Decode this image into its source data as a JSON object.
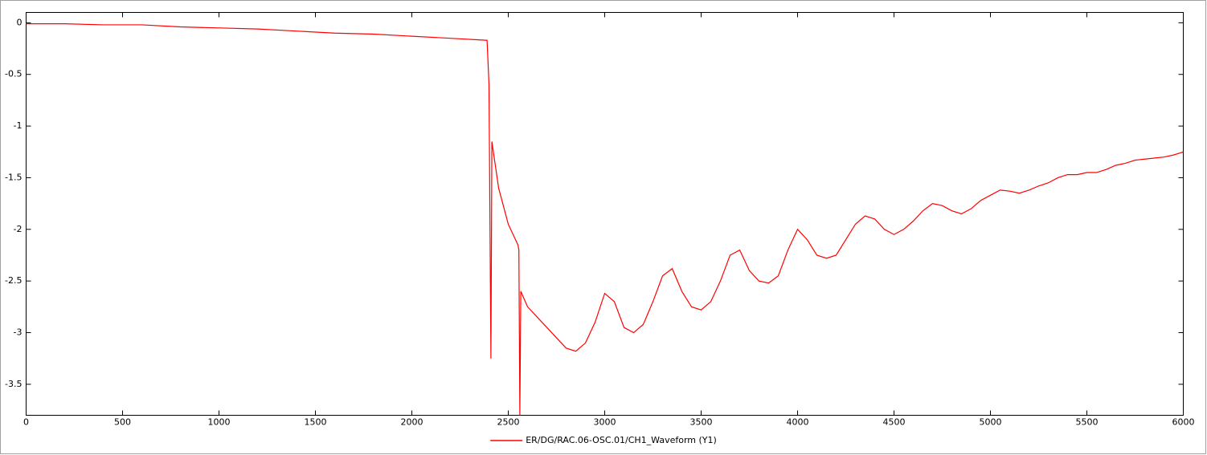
{
  "chart_data": {
    "type": "line",
    "x": [
      0,
      200,
      400,
      600,
      800,
      1000,
      1200,
      1400,
      1600,
      1800,
      2000,
      2200,
      2390,
      2400,
      2410,
      2415,
      2450,
      2500,
      2550,
      2555,
      2560,
      2565,
      2600,
      2650,
      2700,
      2750,
      2800,
      2850,
      2900,
      2950,
      3000,
      3050,
      3100,
      3150,
      3200,
      3250,
      3300,
      3350,
      3400,
      3450,
      3500,
      3550,
      3600,
      3650,
      3700,
      3750,
      3800,
      3850,
      3900,
      3950,
      4000,
      4050,
      4100,
      4150,
      4200,
      4250,
      4300,
      4350,
      4400,
      4450,
      4500,
      4550,
      4600,
      4650,
      4700,
      4750,
      4800,
      4850,
      4900,
      4950,
      5000,
      5050,
      5100,
      5150,
      5200,
      5250,
      5300,
      5350,
      5400,
      5450,
      5500,
      5550,
      5600,
      5650,
      5700,
      5750,
      5800,
      5850,
      5900,
      5950,
      6000
    ],
    "series": [
      {
        "name": "ER/DG/RAC.06-OSC.01/CH1_Waveform (Y1)",
        "color": "#ff0000",
        "values": [
          -0.01,
          -0.01,
          -0.02,
          -0.02,
          -0.04,
          -0.05,
          -0.06,
          -0.08,
          -0.1,
          -0.11,
          -0.13,
          -0.15,
          -0.17,
          -0.6,
          -3.25,
          -1.15,
          -1.6,
          -1.95,
          -2.15,
          -2.2,
          -3.8,
          -2.6,
          -2.75,
          -2.85,
          -2.95,
          -3.05,
          -3.15,
          -3.18,
          -3.1,
          -2.9,
          -2.62,
          -2.7,
          -2.95,
          -3.0,
          -2.92,
          -2.7,
          -2.45,
          -2.38,
          -2.6,
          -2.75,
          -2.78,
          -2.7,
          -2.5,
          -2.25,
          -2.2,
          -2.4,
          -2.5,
          -2.52,
          -2.45,
          -2.2,
          -2.0,
          -2.1,
          -2.25,
          -2.28,
          -2.25,
          -2.1,
          -1.95,
          -1.87,
          -1.9,
          -2.0,
          -2.05,
          -2.0,
          -1.92,
          -1.82,
          -1.75,
          -1.77,
          -1.82,
          -1.85,
          -1.8,
          -1.72,
          -1.67,
          -1.62,
          -1.63,
          -1.65,
          -1.62,
          -1.58,
          -1.55,
          -1.5,
          -1.47,
          -1.47,
          -1.45,
          -1.45,
          -1.42,
          -1.38,
          -1.36,
          -1.33,
          -1.32,
          -1.31,
          -1.3,
          -1.28,
          -1.25
        ]
      }
    ],
    "xlim": [
      0,
      6000
    ],
    "xticks": [
      0,
      500,
      1000,
      1500,
      2000,
      2500,
      3000,
      3500,
      4000,
      4500,
      5000,
      5500,
      6000
    ],
    "ylim": [
      -3.8,
      0.1
    ],
    "yticks": [
      0,
      -0.5,
      -1,
      -1.5,
      -2,
      -2.5,
      -3,
      -3.5
    ],
    "grid": false,
    "legend": "bottom"
  }
}
